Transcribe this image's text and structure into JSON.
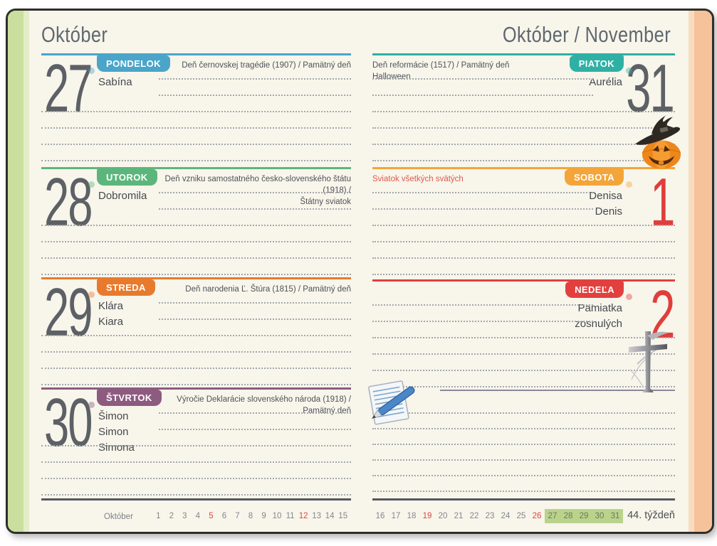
{
  "colors": {
    "monday": "#4aa5c9",
    "tuesday": "#5cb67c",
    "wednesday": "#e87a2d",
    "thursday": "#8d5b7f",
    "friday": "#2fb0a5",
    "saturday": "#f3a53a",
    "sunday": "#e2403e",
    "page_background": "#f8f5eb",
    "cover_edge_left": "#cadf9e",
    "cover_edge_right": "#f5c29a",
    "day_number_gray": "#5d6166",
    "day_number_red": "#df3e3b",
    "holiday_red": "#e4574b",
    "week_highlight": "#b9d38d"
  },
  "left_page": {
    "header": "Október",
    "days": [
      {
        "number": "27",
        "weekday": "PONDELOK",
        "names": [
          "Sabína"
        ],
        "holiday_lines": [
          "Deň černovskej tragédie (1907) / Pamätný deň"
        ]
      },
      {
        "number": "28",
        "weekday": "UTOROK",
        "names": [
          "Dobromila"
        ],
        "holiday_lines": [
          "Deň vzniku samostatného česko-slovenského štátu (1918) /",
          "Štátny sviatok"
        ]
      },
      {
        "number": "29",
        "weekday": "STREDA",
        "names": [
          "Klára",
          "Kiara"
        ],
        "holiday_lines": [
          "Deň narodenia Ľ. Štúra (1815) / Pamätný deň"
        ]
      },
      {
        "number": "30",
        "weekday": "ŠTVRTOK",
        "names": [
          "Šimon",
          "Simon",
          "Simona"
        ],
        "holiday_lines": [
          "Výročie Deklarácie slovenského národa (1918) / Pamätný deň"
        ]
      }
    ],
    "footer": {
      "month_label": "Október",
      "days": [
        {
          "n": "1"
        },
        {
          "n": "2"
        },
        {
          "n": "3"
        },
        {
          "n": "4"
        },
        {
          "n": "5",
          "red": true
        },
        {
          "n": "6"
        },
        {
          "n": "7"
        },
        {
          "n": "8"
        },
        {
          "n": "9"
        },
        {
          "n": "10"
        },
        {
          "n": "11"
        },
        {
          "n": "12",
          "red": true
        },
        {
          "n": "13"
        },
        {
          "n": "14"
        },
        {
          "n": "15"
        }
      ]
    }
  },
  "right_page": {
    "header": "Október / November",
    "days": [
      {
        "number": "31",
        "weekday": "PIATOK",
        "names": [
          "Aurélia"
        ],
        "holiday_lines": [
          "Deň reformácie (1517) / Pamätný deň",
          "Halloween"
        ]
      },
      {
        "number": "1",
        "weekday": "SOBOTA",
        "names": [
          "Denisa",
          "Denis"
        ],
        "holiday_red": "Sviatok všetkých svätých"
      },
      {
        "number": "2",
        "weekday": "NEDEĽA",
        "names": [
          "Pamiatka",
          "zosnulých"
        ]
      }
    ],
    "footer": {
      "days": [
        {
          "n": "16"
        },
        {
          "n": "17"
        },
        {
          "n": "18"
        },
        {
          "n": "19",
          "red": true
        },
        {
          "n": "20"
        },
        {
          "n": "21"
        },
        {
          "n": "22"
        },
        {
          "n": "23"
        },
        {
          "n": "24"
        },
        {
          "n": "25"
        },
        {
          "n": "26",
          "red": true
        },
        {
          "n": "27",
          "hl": true
        },
        {
          "n": "28",
          "hl": true
        },
        {
          "n": "29",
          "hl": true
        },
        {
          "n": "30",
          "hl": true
        },
        {
          "n": "31",
          "hl": true
        }
      ],
      "week_label": "44. týždeň"
    }
  },
  "icons": {
    "halloween": "pumpkin-witch-hat-icon",
    "all_souls": "memorial-cross-icon",
    "notes": "notepad-pen-icon"
  }
}
